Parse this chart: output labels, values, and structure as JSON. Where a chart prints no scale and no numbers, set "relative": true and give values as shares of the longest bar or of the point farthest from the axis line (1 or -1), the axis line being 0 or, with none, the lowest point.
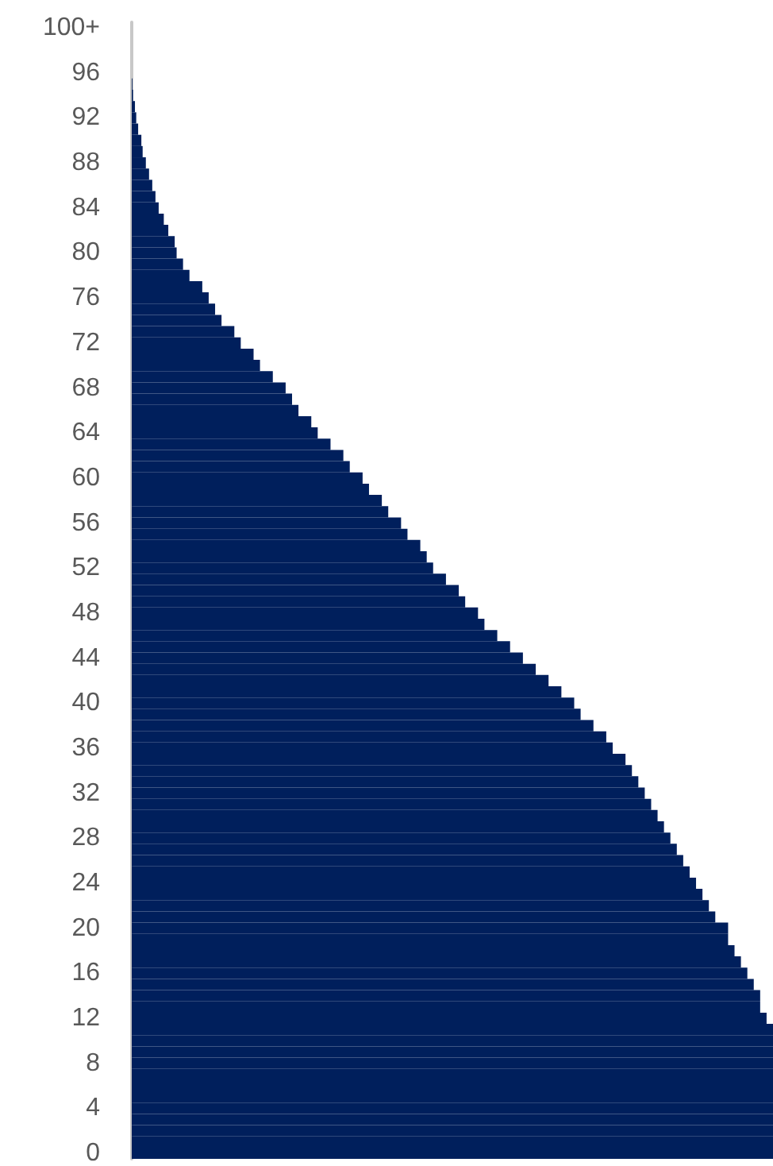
{
  "chart_data": {
    "type": "bar",
    "orientation": "horizontal",
    "relative": true,
    "color": "#001f5c",
    "categories": [
      "100+",
      null,
      null,
      null,
      "96",
      null,
      null,
      null,
      "92",
      null,
      null,
      null,
      "88",
      null,
      null,
      null,
      "84",
      null,
      null,
      null,
      "80",
      null,
      null,
      null,
      "76",
      null,
      null,
      null,
      "72",
      null,
      null,
      null,
      "68",
      null,
      null,
      null,
      "64",
      null,
      null,
      null,
      "60",
      null,
      null,
      null,
      "56",
      null,
      null,
      null,
      "52",
      null,
      null,
      null,
      "48",
      null,
      null,
      null,
      "44",
      null,
      null,
      null,
      "40",
      null,
      null,
      null,
      "36",
      null,
      null,
      null,
      "32",
      null,
      null,
      null,
      "28",
      null,
      null,
      null,
      "24",
      null,
      null,
      null,
      "20",
      null,
      null,
      null,
      "16",
      null,
      null,
      null,
      "12",
      null,
      null,
      null,
      "8",
      null,
      null,
      null,
      "4",
      null,
      null,
      null,
      "0"
    ],
    "values": [
      0,
      0,
      0,
      0,
      0,
      0.001,
      0.002,
      0.005,
      0.007,
      0.01,
      0.015,
      0.017,
      0.022,
      0.027,
      0.032,
      0.037,
      0.042,
      0.05,
      0.057,
      0.067,
      0.07,
      0.08,
      0.09,
      0.11,
      0.12,
      0.13,
      0.14,
      0.16,
      0.17,
      0.19,
      0.2,
      0.22,
      0.24,
      0.25,
      0.26,
      0.28,
      0.29,
      0.31,
      0.33,
      0.34,
      0.36,
      0.37,
      0.39,
      0.4,
      0.42,
      0.43,
      0.45,
      0.46,
      0.47,
      0.49,
      0.51,
      0.52,
      0.54,
      0.55,
      0.57,
      0.59,
      0.61,
      0.63,
      0.65,
      0.67,
      0.69,
      0.7,
      0.72,
      0.74,
      0.75,
      0.77,
      0.78,
      0.79,
      0.8,
      0.81,
      0.82,
      0.83,
      0.84,
      0.85,
      0.86,
      0.87,
      0.88,
      0.89,
      0.9,
      0.91,
      0.93,
      0.93,
      0.94,
      0.95,
      0.96,
      0.97,
      0.98,
      0.98,
      0.99,
      1,
      1,
      1,
      1,
      1,
      1,
      1,
      1,
      1,
      1,
      1,
      1
    ]
  }
}
